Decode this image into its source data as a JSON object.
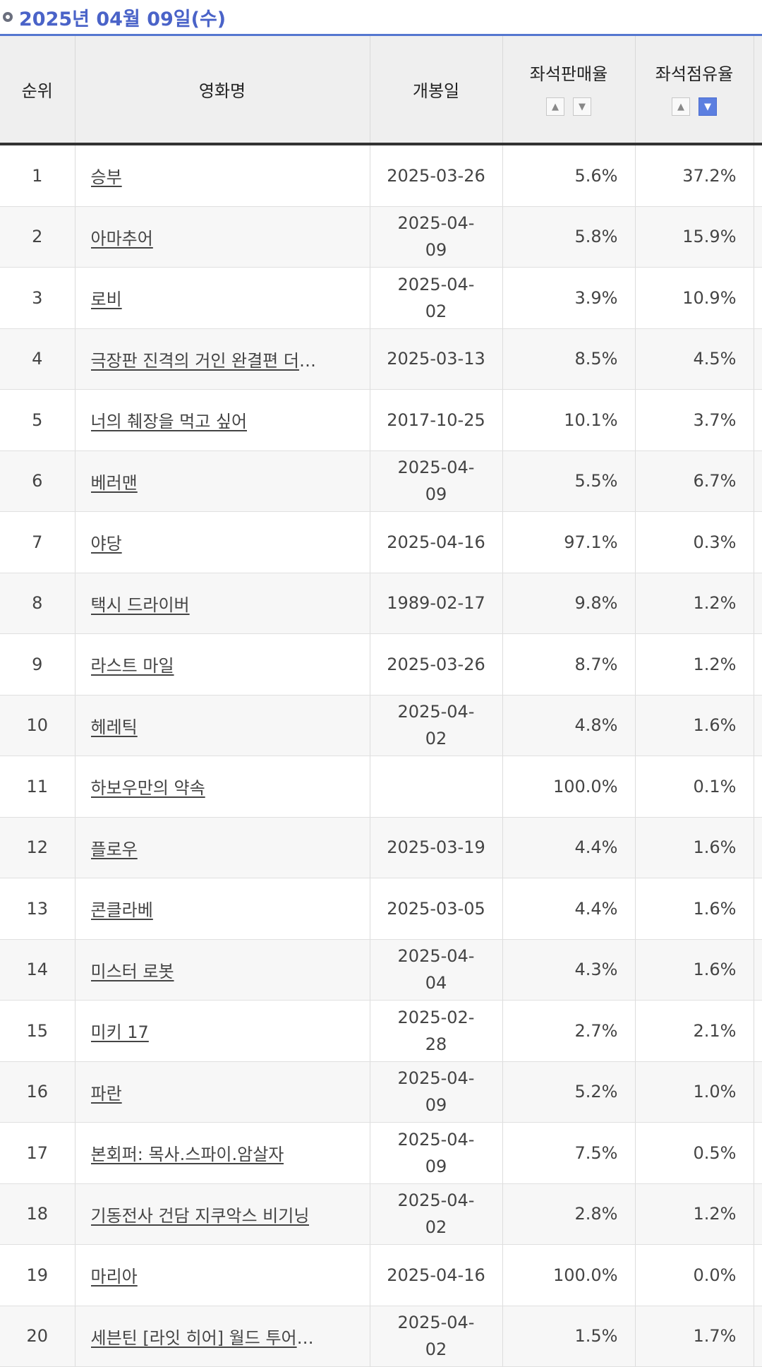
{
  "header": {
    "date": "2025년 04월 09일(수)"
  },
  "columns": {
    "rank": "순위",
    "title": "영화명",
    "release": "개봉일",
    "sales_rate": "좌석판매율",
    "share_rate": "좌석점유율"
  },
  "sort_icons": {
    "up": "chevron-up-icon",
    "down": "chevron-down-icon"
  },
  "active_sort": "share_rate-desc",
  "accent_color": "#5c7fe0",
  "rows": [
    {
      "rank": "1",
      "title": "승부",
      "release": "2025-03-26",
      "sales": "5.6%",
      "share": "37.2%"
    },
    {
      "rank": "2",
      "title": "아마추어",
      "release": "2025-04-09",
      "sales": "5.8%",
      "share": "15.9%"
    },
    {
      "rank": "3",
      "title": "로비",
      "release": "2025-04-02",
      "sales": "3.9%",
      "share": "10.9%"
    },
    {
      "rank": "4",
      "title": "극장판 진격의 거인 완결편 더 라스…",
      "release": "2025-03-13",
      "sales": "8.5%",
      "share": "4.5%"
    },
    {
      "rank": "5",
      "title": "너의 췌장을 먹고 싶어",
      "release": "2017-10-25",
      "sales": "10.1%",
      "share": "3.7%"
    },
    {
      "rank": "6",
      "title": "베러맨",
      "release": "2025-04-09",
      "sales": "5.5%",
      "share": "6.7%"
    },
    {
      "rank": "7",
      "title": "야당",
      "release": "2025-04-16",
      "sales": "97.1%",
      "share": "0.3%"
    },
    {
      "rank": "8",
      "title": "택시 드라이버",
      "release": "1989-02-17",
      "sales": "9.8%",
      "share": "1.2%"
    },
    {
      "rank": "9",
      "title": "라스트 마일",
      "release": "2025-03-26",
      "sales": "8.7%",
      "share": "1.2%"
    },
    {
      "rank": "10",
      "title": "헤레틱",
      "release": "2025-04-02",
      "sales": "4.8%",
      "share": "1.6%"
    },
    {
      "rank": "11",
      "title": "하보우만의 약속",
      "release": "",
      "sales": "100.0%",
      "share": "0.1%"
    },
    {
      "rank": "12",
      "title": "플로우",
      "release": "2025-03-19",
      "sales": "4.4%",
      "share": "1.6%"
    },
    {
      "rank": "13",
      "title": "콘클라베",
      "release": "2025-03-05",
      "sales": "4.4%",
      "share": "1.6%"
    },
    {
      "rank": "14",
      "title": "미스터 로봇",
      "release": "2025-04-04",
      "sales": "4.3%",
      "share": "1.6%"
    },
    {
      "rank": "15",
      "title": "미키 17",
      "release": "2025-02-28",
      "sales": "2.7%",
      "share": "2.1%"
    },
    {
      "rank": "16",
      "title": "파란",
      "release": "2025-04-09",
      "sales": "5.2%",
      "share": "1.0%"
    },
    {
      "rank": "17",
      "title": "본회퍼: 목사.스파이.암살자",
      "release": "2025-04-09",
      "sales": "7.5%",
      "share": "0.5%"
    },
    {
      "rank": "18",
      "title": "기동전사 건담 지쿠악스 비기닝",
      "release": "2025-04-02",
      "sales": "2.8%",
      "share": "1.2%"
    },
    {
      "rank": "19",
      "title": "마리아",
      "release": "2025-04-16",
      "sales": "100.0%",
      "share": "0.0%"
    },
    {
      "rank": "20",
      "title": "세븐틴 [라잇 히어] 월드 투어 인 시…",
      "release": "2025-04-02",
      "sales": "1.5%",
      "share": "1.7%"
    }
  ]
}
